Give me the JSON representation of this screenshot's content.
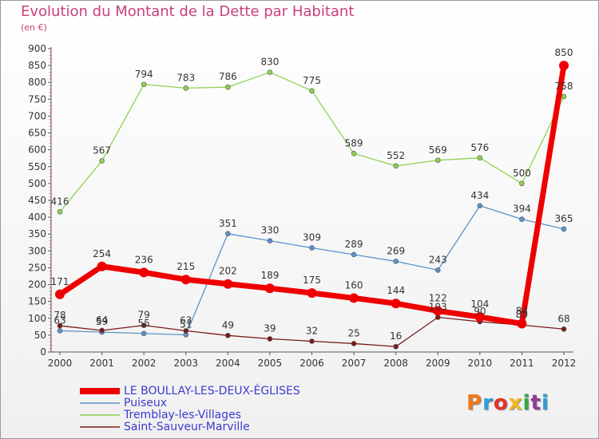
{
  "header": {
    "title": "Evolution du Montant de la Dette par Habitant",
    "subtitle": "(en €)"
  },
  "logo": {
    "text": "Proxiti",
    "colors": [
      "#f07a1a",
      "#2aa0d8",
      "#e2332a",
      "#f2b71c",
      "#37a84a",
      "#8e3a96",
      "#2aa0d8"
    ]
  },
  "chart_data": {
    "type": "line",
    "title": "Evolution du Montant de la Dette par Habitant",
    "subtitle": "(en €)",
    "x": [
      "2000",
      "2001",
      "2002",
      "2003",
      "2004",
      "2005",
      "2006",
      "2007",
      "2008",
      "2009",
      "2010",
      "2011",
      "2012"
    ],
    "ylim": [
      0,
      900
    ],
    "yticks": [
      0,
      50,
      100,
      150,
      200,
      250,
      300,
      350,
      400,
      450,
      500,
      550,
      600,
      650,
      700,
      750,
      800,
      850,
      900
    ],
    "grid": false,
    "legend_position": "bottom-left",
    "series": [
      {
        "name": "LE BOULLAY-LES-DEUX-ÉGLISES",
        "color": "#ee0000",
        "values": [
          171,
          254,
          236,
          215,
          202,
          189,
          175,
          160,
          144,
          122,
          104,
          84,
          850
        ],
        "labels": [
          "171",
          "254",
          "236",
          "215",
          "202",
          "189",
          "175",
          "160",
          "144",
          "122",
          "104",
          "84",
          "850"
        ]
      },
      {
        "name": "Puiseux",
        "color": "#5b93c9",
        "values": [
          63,
          59,
          55,
          51,
          351,
          330,
          309,
          289,
          269,
          243,
          434,
          394,
          365
        ],
        "labels": [
          "63",
          "59",
          "55",
          "51",
          "351",
          "330",
          "309",
          "289",
          "269",
          "243",
          "434",
          "394",
          "365"
        ]
      },
      {
        "name": "Tremblay-les-Villages",
        "color": "#8fd14f",
        "values": [
          416,
          567,
          794,
          783,
          786,
          830,
          775,
          589,
          552,
          569,
          576,
          500,
          758
        ],
        "labels": [
          "416",
          "567",
          "794",
          "783",
          "786",
          "830",
          "775",
          "589",
          "552",
          "569",
          "576",
          "500",
          "758"
        ]
      },
      {
        "name": "Saint-Sauveur-Marville",
        "color": "#7a1a1a",
        "values": [
          78,
          64,
          79,
          63,
          49,
          39,
          32,
          25,
          16,
          103,
          90,
          80,
          68
        ],
        "labels": [
          "78",
          "64",
          "79",
          "63",
          "49",
          "39",
          "32",
          "25",
          "16",
          "103",
          "90",
          "80",
          "68"
        ]
      }
    ]
  }
}
